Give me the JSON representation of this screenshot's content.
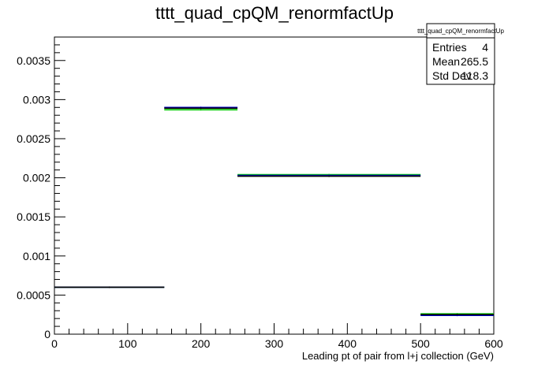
{
  "chart_data": {
    "type": "bar",
    "title": "tttt_quad_cpQM_renormfactUp",
    "xlabel": "Leading pt of pair from l+j collection (GeV)",
    "ylabel": "",
    "xlim": [
      0,
      600
    ],
    "ylim": [
      0,
      0.0038
    ],
    "x_ticks": [
      "0",
      "100",
      "200",
      "300",
      "400",
      "500",
      "600"
    ],
    "y_ticks": [
      "0",
      "0.0005",
      "0.001",
      "0.0015",
      "0.002",
      "0.0025",
      "0.003",
      "0.0035"
    ],
    "bins": [
      {
        "low": 0,
        "high": 150
      },
      {
        "low": 150,
        "high": 250
      },
      {
        "low": 250,
        "high": 500
      },
      {
        "low": 500,
        "high": 600
      }
    ],
    "series": [
      {
        "color": "#00cc00",
        "values": [
          0.0006,
          0.00287,
          0.00204,
          0.00026
        ]
      },
      {
        "color": "#0000cc",
        "values": [
          0.0006,
          0.0029,
          0.00203,
          0.00024
        ]
      },
      {
        "color": "#000000",
        "values": [
          0.0006,
          0.00289,
          0.00202,
          0.00025
        ]
      }
    ],
    "stats": {
      "title": "tttt_quad_cpQM_renormfactUp",
      "rows": [
        {
          "label": "Entries",
          "value": "4"
        },
        {
          "label": "Mean",
          "value": "265.5"
        },
        {
          "label": "Std Dev",
          "value": "118.3"
        }
      ]
    }
  }
}
